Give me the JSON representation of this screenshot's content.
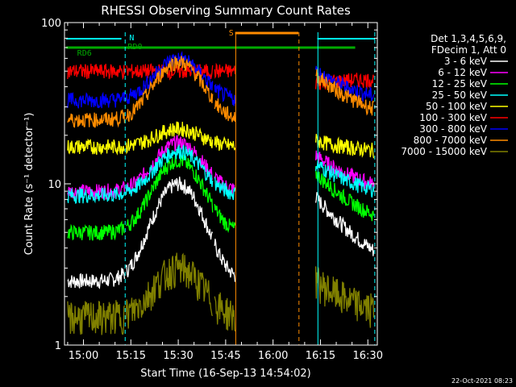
{
  "chart_data": {
    "type": "line",
    "title": "RHESSI Observing Summary Count Rates",
    "xlabel": "Start Time (16-Sep-13 14:54:02)",
    "ylabel": "Count Rate (s⁻¹ detector⁻¹)",
    "y_scale": "log",
    "ylim": [
      1,
      100
    ],
    "xlim_minutes_of_day": [
      894,
      993
    ],
    "x_ticks": [
      "15:00",
      "15:15",
      "15:30",
      "15:45",
      "16:00",
      "16:15",
      "16:30"
    ],
    "x_tick_minutes": [
      900,
      915,
      930,
      945,
      960,
      975,
      990
    ],
    "y_ticks": [
      "1",
      "10",
      "100"
    ],
    "y_tick_values": [
      1,
      10,
      100
    ],
    "legend_header": [
      "Det 1,3,4,5,6,9,",
      "FDecim 1, Att 0"
    ],
    "legend_position": "right",
    "series": [
      {
        "name": "3 - 6 keV",
        "color": "#ffffff",
        "peak": 10,
        "base": 2.5
      },
      {
        "name": "6 - 12 keV",
        "color": "#ff00ff",
        "peak": 18,
        "base": 9
      },
      {
        "name": "12 - 25 keV",
        "color": "#00ff00",
        "peak": 14,
        "base": 5
      },
      {
        "name": "25 - 50 keV",
        "color": "#00ffff",
        "peak": 16,
        "base": 8.5
      },
      {
        "name": "50 - 100 keV",
        "color": "#ffff00",
        "peak": 22,
        "base": 17
      },
      {
        "name": "100 - 300 keV",
        "color": "#ff0000",
        "peak": 50,
        "base": 50
      },
      {
        "name": "300 - 800 keV",
        "color": "#0000ff",
        "peak": 60,
        "base": 33
      },
      {
        "name": "800 - 7000 keV",
        "color": "#ff8c00",
        "peak": 57,
        "base": 25
      },
      {
        "name": "7000 - 15000 keV",
        "color": "#808000",
        "peak": 3,
        "base": 1.5
      }
    ],
    "annotations": {
      "flags": [
        {
          "label": "N",
          "color": "#00ffff"
        },
        {
          "label": "RD0",
          "color": "#00aa00"
        },
        {
          "label": "RD6",
          "color": "#00aa00"
        },
        {
          "label": "S",
          "color": "#ff8c00"
        }
      ]
    },
    "timestamp": "22-Oct-2021 08:23"
  },
  "colors": {
    "background": "#000000",
    "axis": "#ffffff"
  }
}
